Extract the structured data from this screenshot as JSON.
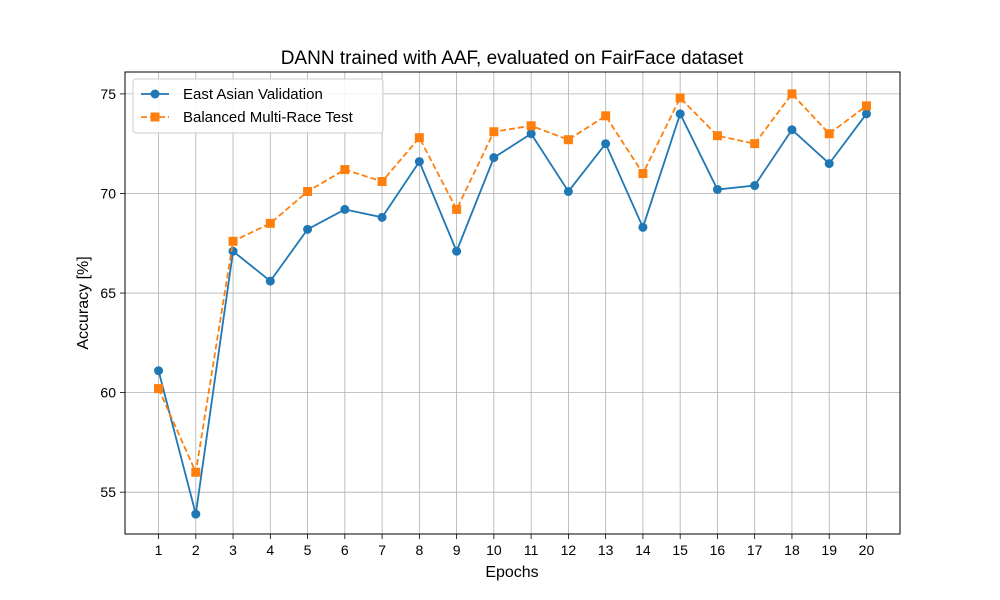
{
  "chart_data": {
    "type": "line",
    "title": "DANN trained with AAF, evaluated on FairFace dataset",
    "xlabel": "Epochs",
    "ylabel": "Accuracy [%]",
    "x": [
      1,
      2,
      3,
      4,
      5,
      6,
      7,
      8,
      9,
      10,
      11,
      12,
      13,
      14,
      15,
      16,
      17,
      18,
      19,
      20
    ],
    "xlim": [
      0.1,
      20.9
    ],
    "ylim": [
      52.9,
      76.1
    ],
    "xticks": [
      "1",
      "2",
      "3",
      "4",
      "5",
      "6",
      "7",
      "8",
      "9",
      "10",
      "11",
      "12",
      "13",
      "14",
      "15",
      "16",
      "17",
      "18",
      "19",
      "20"
    ],
    "yticks": [
      55,
      60,
      65,
      70,
      75
    ],
    "grid": true,
    "legend_position": "top-left",
    "series": [
      {
        "name": "East Asian Validation",
        "color": "#1f77b4",
        "marker": "circle",
        "linestyle": "solid",
        "values": [
          61.1,
          53.9,
          67.1,
          65.6,
          68.2,
          69.2,
          68.8,
          71.6,
          67.1,
          71.8,
          73.0,
          70.1,
          72.5,
          68.3,
          74.0,
          70.2,
          70.4,
          73.2,
          71.5,
          74.0
        ]
      },
      {
        "name": "Balanced Multi-Race Test",
        "color": "#ff7f0e",
        "marker": "square",
        "linestyle": "dashed",
        "values": [
          60.2,
          56.0,
          67.6,
          68.5,
          70.1,
          71.2,
          70.6,
          72.8,
          69.2,
          73.1,
          73.4,
          72.7,
          73.9,
          71.0,
          74.8,
          72.9,
          72.5,
          75.0,
          73.0,
          74.4
        ]
      }
    ]
  }
}
